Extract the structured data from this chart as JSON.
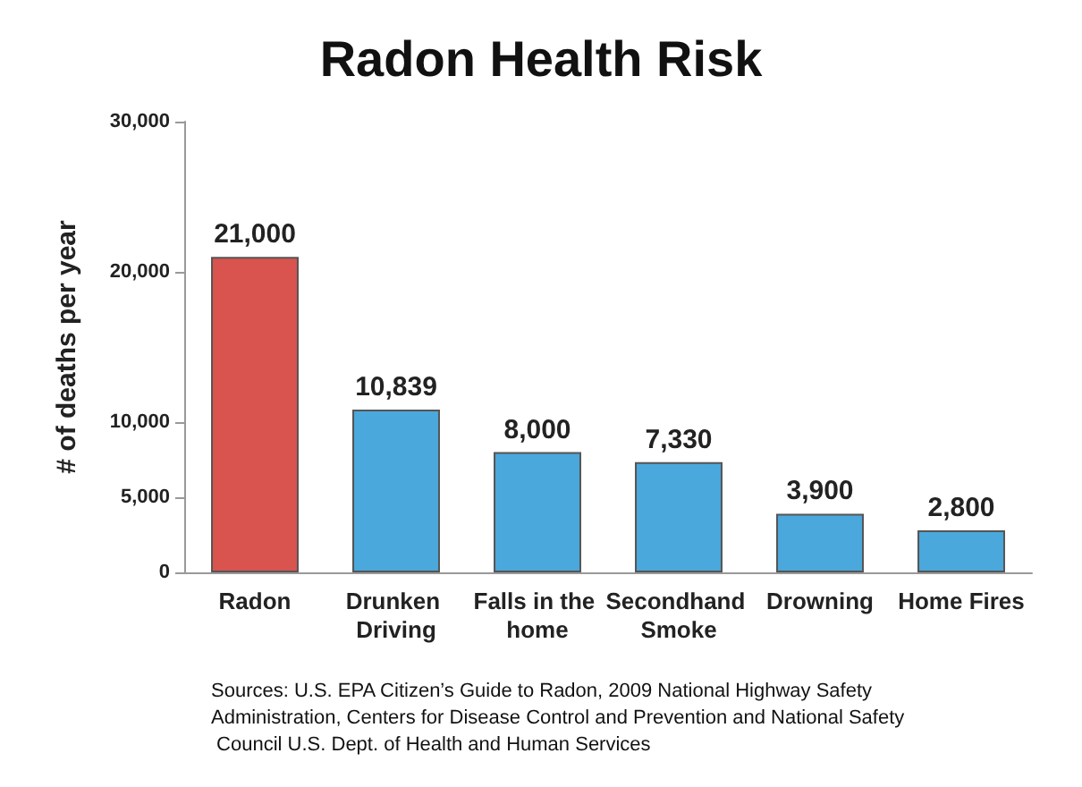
{
  "chart_data": {
    "type": "bar",
    "title": "Radon Health Risk",
    "ylabel": "# of deaths per year",
    "categories": [
      "Radon",
      "Drunken Driving",
      "Falls in the home",
      "Secondhand Smoke",
      "Drowning",
      "Home Fires"
    ],
    "values": [
      21000,
      10839,
      8000,
      7330,
      3900,
      2800
    ],
    "colors": [
      "#d9534f",
      "#4aa8dc",
      "#4aa8dc",
      "#4aa8dc",
      "#4aa8dc",
      "#4aa8dc"
    ],
    "value_labels": [
      "21,000",
      "10,839",
      "8,000",
      "7,330",
      "3,900",
      "2,800"
    ],
    "ylim": [
      0,
      30000
    ],
    "yticks": [
      {
        "value": 0,
        "label": "0"
      },
      {
        "value": 5000,
        "label": "5,000"
      },
      {
        "value": 10000,
        "label": "10,000"
      },
      {
        "value": 20000,
        "label": "20,000"
      },
      {
        "value": 30000,
        "label": "30,000"
      }
    ],
    "grid": false,
    "annotations": [
      "Sources: U.S. EPA Citizen’s Guide to Radon, 2009 National Highway Safety Administration, Centers for Disease Control and Prevention and National Safety Council U.S. Dept. of Health and Human Services"
    ]
  }
}
